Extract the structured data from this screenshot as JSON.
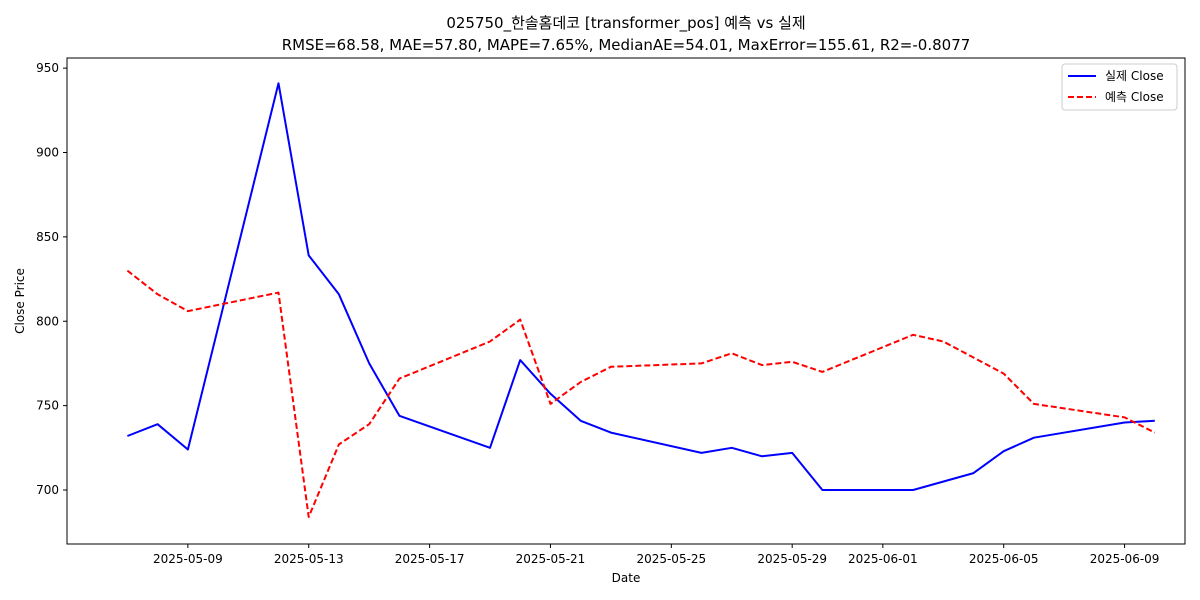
{
  "chart_data": {
    "type": "line",
    "title": "025750_한솔홈데코 [transformer_pos] 예측 vs 실제",
    "subtitle": "RMSE=68.58, MAE=57.80, MAPE=7.65%, MedianAE=54.01, MaxError=155.61, R2=-0.8077",
    "xlabel": "Date",
    "ylabel": "Close Price",
    "xlim": [
      "2025-05-05",
      "2025-06-11"
    ],
    "ylim": [
      668,
      956
    ],
    "x_ticks": [
      "2025-05-09",
      "2025-05-13",
      "2025-05-17",
      "2025-05-21",
      "2025-05-25",
      "2025-05-29",
      "2025-06-01",
      "2025-06-05",
      "2025-06-09"
    ],
    "y_ticks": [
      700,
      750,
      800,
      850,
      900,
      950
    ],
    "grid": false,
    "legend_position": "top-right",
    "series": [
      {
        "name": "실제 Close",
        "color": "#0000ff",
        "style": "solid",
        "points": [
          [
            "2025-05-07",
            732
          ],
          [
            "2025-05-08",
            739
          ],
          [
            "2025-05-09",
            724
          ],
          [
            "2025-05-12",
            941
          ],
          [
            "2025-05-13",
            839
          ],
          [
            "2025-05-14",
            816
          ],
          [
            "2025-05-15",
            775
          ],
          [
            "2025-05-16",
            744
          ],
          [
            "2025-05-19",
            725
          ],
          [
            "2025-05-20",
            777
          ],
          [
            "2025-05-21",
            757
          ],
          [
            "2025-05-22",
            741
          ],
          [
            "2025-05-23",
            734
          ],
          [
            "2025-05-26",
            722
          ],
          [
            "2025-05-27",
            725
          ],
          [
            "2025-05-28",
            720
          ],
          [
            "2025-05-29",
            722
          ],
          [
            "2025-05-30",
            700
          ],
          [
            "2025-06-02",
            700
          ],
          [
            "2025-06-04",
            710
          ],
          [
            "2025-06-05",
            723
          ],
          [
            "2025-06-06",
            731
          ],
          [
            "2025-06-09",
            740
          ],
          [
            "2025-06-10",
            741
          ]
        ]
      },
      {
        "name": "예측 Close",
        "color": "#ff0000",
        "style": "dashed",
        "points": [
          [
            "2025-05-07",
            830
          ],
          [
            "2025-05-08",
            816
          ],
          [
            "2025-05-09",
            806
          ],
          [
            "2025-05-12",
            817
          ],
          [
            "2025-05-13",
            684
          ],
          [
            "2025-05-14",
            727
          ],
          [
            "2025-05-15",
            739
          ],
          [
            "2025-05-16",
            766
          ],
          [
            "2025-05-19",
            788
          ],
          [
            "2025-05-20",
            801
          ],
          [
            "2025-05-21",
            751
          ],
          [
            "2025-05-22",
            764
          ],
          [
            "2025-05-23",
            773
          ],
          [
            "2025-05-26",
            775
          ],
          [
            "2025-05-27",
            781
          ],
          [
            "2025-05-28",
            774
          ],
          [
            "2025-05-29",
            776
          ],
          [
            "2025-05-30",
            770
          ],
          [
            "2025-06-02",
            792
          ],
          [
            "2025-06-03",
            788
          ],
          [
            "2025-06-05",
            769
          ],
          [
            "2025-06-06",
            751
          ],
          [
            "2025-06-09",
            743
          ],
          [
            "2025-06-10",
            734
          ]
        ]
      }
    ]
  }
}
